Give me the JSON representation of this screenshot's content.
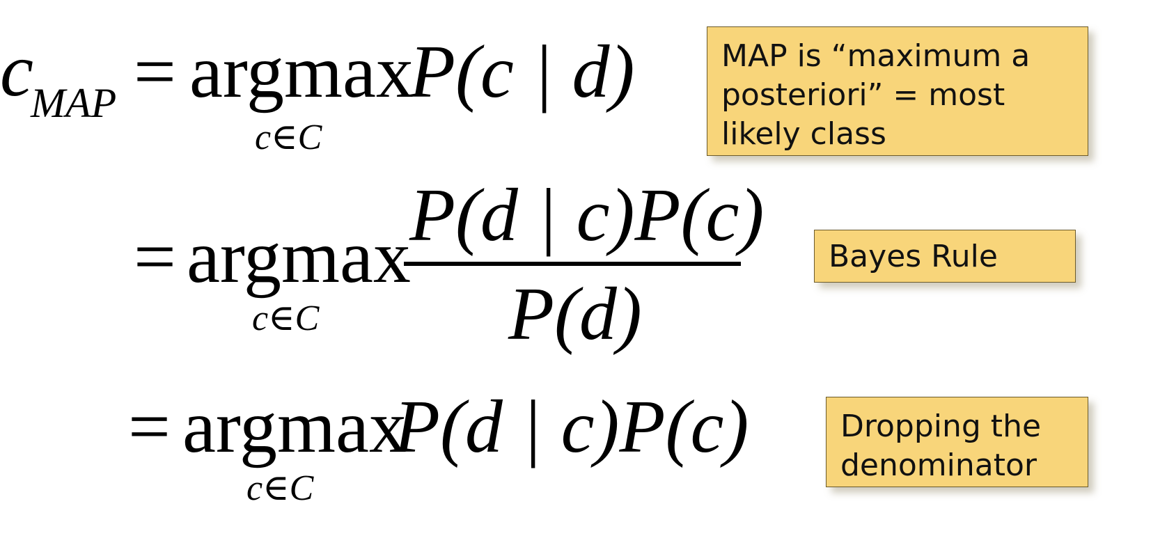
{
  "line1": {
    "lhs_var": "c",
    "lhs_sub": "MAP",
    "eq": "=",
    "op": "argmax",
    "under": "c∈C",
    "expr": "P(c | d)"
  },
  "line2": {
    "eq": "=",
    "op": "argmax",
    "under": "c∈C",
    "numerator": "P(d | c)P(c)",
    "denominator": "P(d)"
  },
  "line3": {
    "eq": "=",
    "op": "argmax",
    "under": "c∈C",
    "expr": "P(d | c)P(c)"
  },
  "notes": {
    "map": "MAP is “maximum a posteriori”  = most likely class",
    "bayes": "Bayes Rule",
    "drop": "Dropping the denominator"
  }
}
